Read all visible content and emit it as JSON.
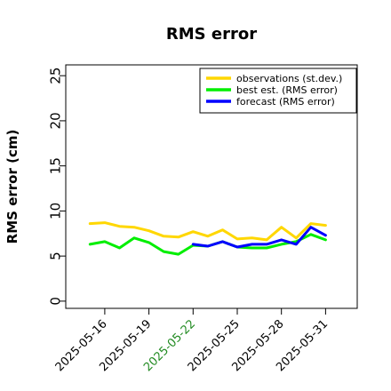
{
  "chart_data": {
    "type": "line",
    "title": "RMS error",
    "ylabel": "RMS error (cm)",
    "ylim": [
      -0.8,
      26.2
    ],
    "yticks": [
      0,
      5,
      10,
      15,
      20,
      25
    ],
    "xticks": [
      {
        "label": "2025-05-16",
        "day": 16,
        "color": "#000000"
      },
      {
        "label": "2025-05-19",
        "day": 19,
        "color": "#000000"
      },
      {
        "label": "2025-05-22",
        "day": 22,
        "color": "#228b22"
      },
      {
        "label": "2025-05-25",
        "day": 25,
        "color": "#000000"
      },
      {
        "label": "2025-05-28",
        "day": 28,
        "color": "#000000"
      },
      {
        "label": "2025-05-31",
        "day": 31,
        "color": "#000000"
      }
    ],
    "xlim": [
      13.35,
      33.15
    ],
    "legend_position": "top-right",
    "series": [
      {
        "name": "observations (st.dev.)",
        "color": "#ffd700",
        "x": [
          15,
          16,
          17,
          18,
          19,
          20,
          21,
          22,
          23,
          24,
          25,
          26,
          27,
          28,
          29,
          30,
          31
        ],
        "values": [
          8.6,
          8.7,
          8.3,
          8.2,
          7.8,
          7.2,
          7.1,
          7.7,
          7.2,
          7.9,
          6.9,
          7.0,
          6.8,
          8.2,
          7.0,
          8.6,
          8.4
        ]
      },
      {
        "name": "best est. (RMS error)",
        "color": "#00ee00",
        "x": [
          15,
          16,
          17,
          18,
          19,
          20,
          21,
          22,
          23,
          24,
          25,
          26,
          27,
          28,
          29,
          30,
          31
        ],
        "values": [
          6.3,
          6.6,
          5.9,
          7.0,
          6.5,
          5.5,
          5.2,
          6.2,
          6.1,
          6.6,
          6.0,
          5.9,
          5.9,
          6.3,
          6.6,
          7.4,
          6.8
        ]
      },
      {
        "name": "forecast (RMS error)",
        "color": "#0000ff",
        "x": [
          22,
          23,
          24,
          25,
          26,
          27,
          28,
          29,
          30,
          31
        ],
        "values": [
          6.3,
          6.1,
          6.6,
          6.0,
          6.3,
          6.3,
          6.8,
          6.3,
          8.2,
          7.3
        ]
      }
    ]
  }
}
